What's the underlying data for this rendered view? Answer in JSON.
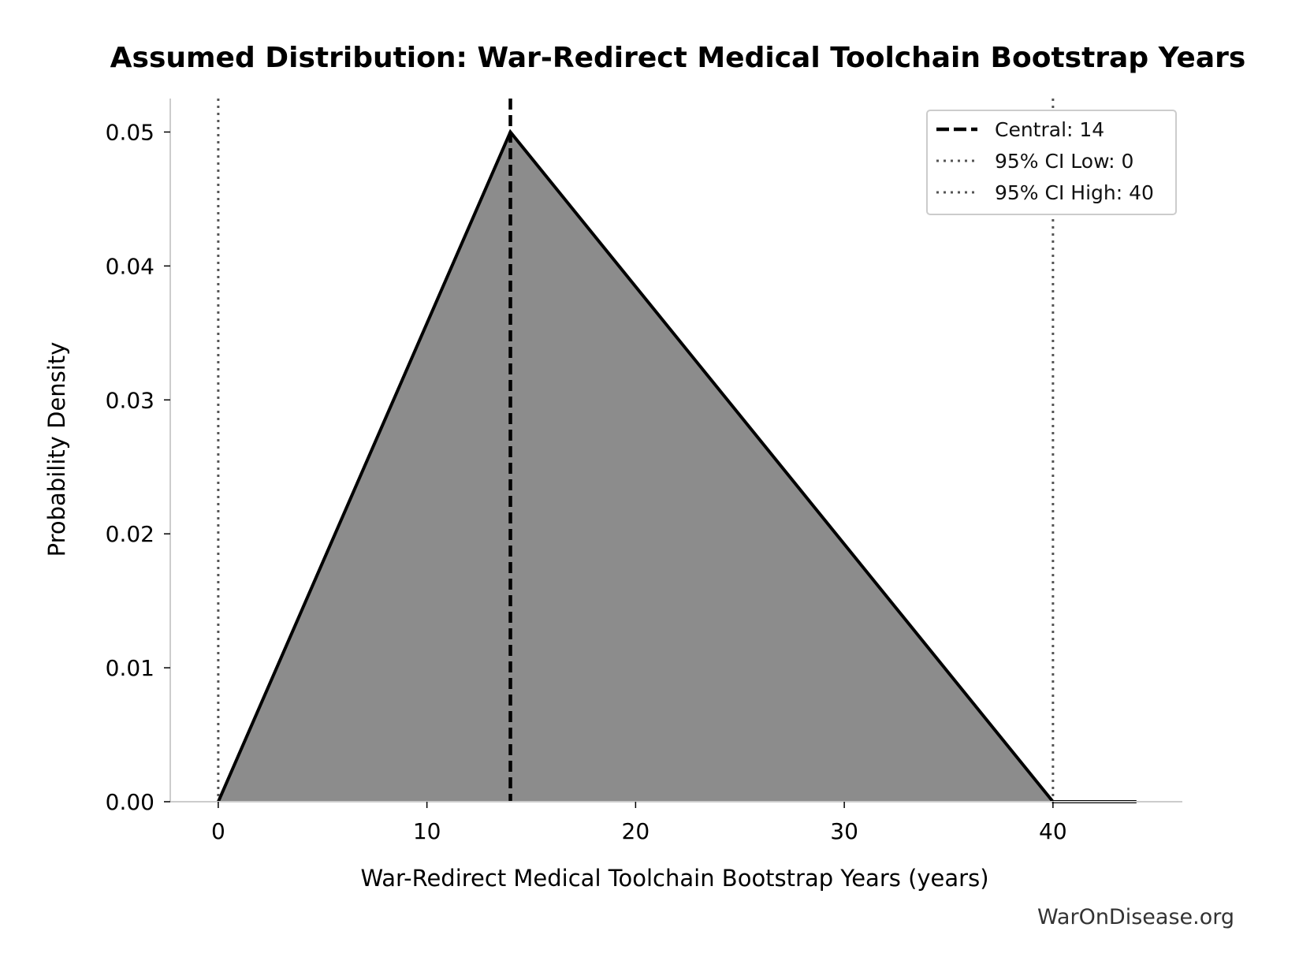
{
  "chart_data": {
    "type": "area",
    "title": "Assumed Distribution: War-Redirect Medical Toolchain Bootstrap Years",
    "xlabel": "War-Redirect Medical Toolchain Bootstrap Years (years)",
    "ylabel": "Probability Density",
    "xlim": [
      -2.3,
      46.2
    ],
    "ylim": [
      0,
      0.0525
    ],
    "x_ticks": [
      0,
      10,
      20,
      30,
      40
    ],
    "x_tick_labels": [
      "0",
      "10",
      "20",
      "30",
      "40"
    ],
    "y_ticks": [
      0,
      0.01,
      0.02,
      0.03,
      0.04,
      0.05
    ],
    "y_tick_labels": [
      "0.00",
      "0.01",
      "0.02",
      "0.03",
      "0.04",
      "0.05"
    ],
    "grid": false,
    "series": [
      {
        "x": [
          0,
          14,
          40,
          44
        ],
        "y": [
          0,
          0.05,
          0,
          0
        ],
        "fill_color": "#8c8c8c",
        "line_color": "#000000"
      }
    ],
    "reference_lines": [
      {
        "label": "Central: 14",
        "x": 14,
        "style": "dashed",
        "color": "#000000"
      },
      {
        "label": "95% CI Low: 0",
        "x": 0,
        "style": "dotted",
        "color": "#555555"
      },
      {
        "label": "95% CI High: 40",
        "x": 40,
        "style": "dotted",
        "color": "#555555"
      }
    ],
    "legend_position": "top-right",
    "watermark": "WarOnDisease.org"
  }
}
